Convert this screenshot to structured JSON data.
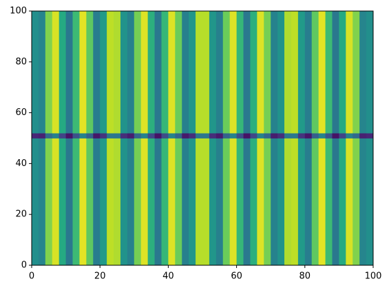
{
  "chart_data": {
    "type": "heatmap",
    "colormap": "viridis",
    "clim": [
      0,
      1
    ],
    "xlim": [
      0,
      100
    ],
    "ylim": [
      0,
      100
    ],
    "xticks": [
      0,
      20,
      40,
      60,
      80,
      100
    ],
    "yticks": [
      0,
      20,
      40,
      60,
      80,
      100
    ],
    "y_edges": [
      0,
      50,
      52,
      100
    ],
    "z": [
      [
        0.49,
        0.45,
        0.81,
        0.94,
        0.61,
        0.4,
        0.68,
        0.96,
        0.75,
        0.42,
        0.54,
        0.9,
        0.88,
        0.51,
        0.44,
        0.79,
        0.95,
        0.63,
        0.4,
        0.66,
        0.95,
        0.77,
        0.43,
        0.52,
        0.89,
        0.89,
        0.52,
        0.43,
        0.77,
        0.95,
        0.66,
        0.4,
        0.63,
        0.95,
        0.79,
        0.44,
        0.51,
        0.88,
        0.9,
        0.54,
        0.42,
        0.75,
        0.96,
        0.68,
        0.4,
        0.61,
        0.94,
        0.81,
        0.45,
        0.49
      ],
      [
        0.11,
        0.09,
        0.34,
        0.43,
        0.2,
        0.05,
        0.25,
        0.44,
        0.3,
        0.06,
        0.15,
        0.4,
        0.39,
        0.13,
        0.08,
        0.32,
        0.44,
        0.21,
        0.05,
        0.23,
        0.44,
        0.31,
        0.07,
        0.13,
        0.39,
        0.39,
        0.13,
        0.07,
        0.31,
        0.44,
        0.23,
        0.05,
        0.21,
        0.44,
        0.32,
        0.08,
        0.13,
        0.39,
        0.4,
        0.15,
        0.06,
        0.3,
        0.44,
        0.25,
        0.05,
        0.2,
        0.43,
        0.34,
        0.09,
        0.11
      ],
      [
        0.49,
        0.45,
        0.81,
        0.94,
        0.61,
        0.4,
        0.68,
        0.96,
        0.75,
        0.42,
        0.54,
        0.9,
        0.88,
        0.51,
        0.44,
        0.79,
        0.95,
        0.63,
        0.4,
        0.66,
        0.95,
        0.77,
        0.43,
        0.52,
        0.89,
        0.89,
        0.52,
        0.43,
        0.77,
        0.95,
        0.66,
        0.4,
        0.63,
        0.95,
        0.79,
        0.44,
        0.51,
        0.88,
        0.9,
        0.54,
        0.42,
        0.75,
        0.96,
        0.68,
        0.4,
        0.61,
        0.94,
        0.81,
        0.45,
        0.49
      ]
    ]
  }
}
